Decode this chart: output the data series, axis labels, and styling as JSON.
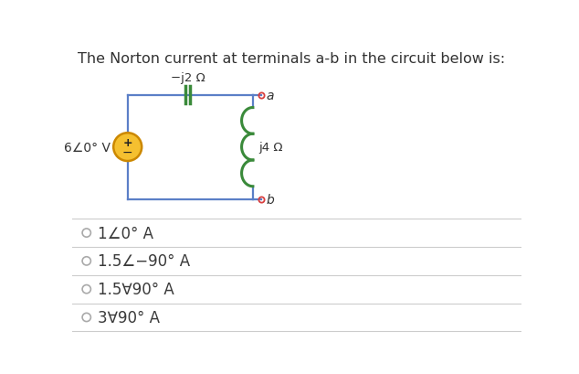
{
  "title": "The Norton current at terminals a-b in the circuit below is:",
  "title_fontsize": 11.5,
  "title_color": "#333333",
  "background_color": "#ffffff",
  "circuit": {
    "vs_label": "6∠0° V",
    "cap_label": "−j2 Ω",
    "ind_label": "j4 Ω",
    "term_a": "a",
    "term_b": "b",
    "wire_color": "#5b7fc7",
    "comp_color": "#3a8a3a",
    "term_color": "#d94040",
    "vs_face": "#f5c030",
    "vs_edge": "#cc8800"
  },
  "options": [
    "1∠0° A",
    "1.5∠−90° A",
    "1.5∀90° A",
    "3∀90° A"
  ],
  "option_fontsize": 12,
  "option_color": "#3a3a3a",
  "divider_color": "#cccccc"
}
